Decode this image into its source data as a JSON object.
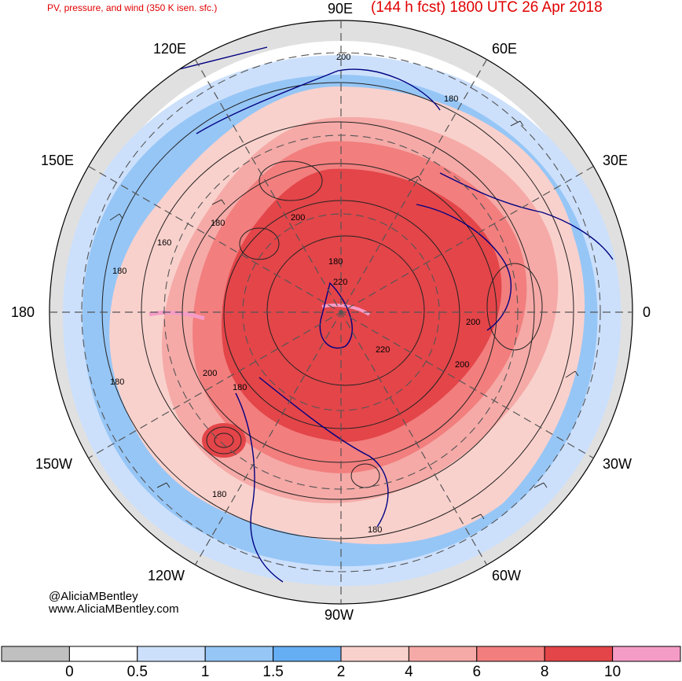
{
  "header": {
    "title_left": "PV, pressure, and wind (350 K isen. sfc.)",
    "title_right": "(144 h fcst) 1800 UTC 26 Apr 2018"
  },
  "longitude_labels": {
    "n90e": "90E",
    "n60e": "60E",
    "n120e": "120E",
    "n30e": "30E",
    "n150e": "150E",
    "e0": "0",
    "w180": "180",
    "n30w": "30W",
    "n150w": "150W",
    "n60w": "60W",
    "n120w": "120W",
    "s90w": "90W"
  },
  "contour_labels": [
    "200",
    "180",
    "180",
    "160",
    "180",
    "200",
    "180",
    "220",
    "220",
    "200",
    "200",
    "180",
    "200",
    "180",
    "180",
    "180",
    "180"
  ],
  "credit": {
    "handle": "@AliciaMBentley",
    "website": "www.AliciaMBentley.com"
  },
  "colorbar": {
    "ticks": [
      "0",
      "0.5",
      "1",
      "1.5",
      "2",
      "4",
      "6",
      "8",
      "10"
    ],
    "colors": [
      "#c0c0c0",
      "#ffffff",
      "#cce0fc",
      "#96c6f6",
      "#66aef4",
      "#f9d1cc",
      "#f5aaa7",
      "#f27e7e",
      "#e34549",
      "#f59cc6"
    ]
  },
  "colors": {
    "title": "#e00000",
    "coastline": "#000080",
    "contour": "#222222"
  }
}
